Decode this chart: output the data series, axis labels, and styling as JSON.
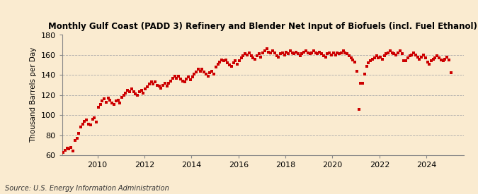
{
  "title": "Monthly Gulf Coast (PADD 3) Refinery and Blender Net Input of Biofuels (incl. Fuel Ethanol)",
  "ylabel": "Thousand Barrels per Day",
  "source": "Source: U.S. Energy Information Administration",
  "background_color": "#faebd0",
  "dot_color": "#cc0000",
  "ylim": [
    60,
    180
  ],
  "yticks": [
    60,
    80,
    100,
    120,
    140,
    160,
    180
  ],
  "xlim_start": [
    2008,
    7,
    1
  ],
  "xlim_end": [
    2025,
    8,
    1
  ],
  "start_year": 2008,
  "start_month": 7,
  "data": [
    63,
    65,
    67,
    66,
    68,
    64,
    75,
    77,
    82,
    88,
    91,
    94,
    95,
    91,
    90,
    96,
    97,
    93,
    108,
    111,
    114,
    116,
    113,
    117,
    115,
    112,
    111,
    114,
    115,
    112,
    118,
    120,
    122,
    125,
    123,
    126,
    123,
    121,
    120,
    123,
    125,
    122,
    126,
    128,
    131,
    133,
    131,
    133,
    130,
    129,
    127,
    130,
    132,
    129,
    132,
    134,
    137,
    139,
    137,
    139,
    136,
    134,
    133,
    136,
    138,
    135,
    138,
    141,
    143,
    146,
    144,
    146,
    143,
    141,
    139,
    142,
    144,
    141,
    148,
    151,
    153,
    155,
    154,
    155,
    152,
    150,
    149,
    152,
    154,
    151,
    154,
    157,
    159,
    161,
    160,
    162,
    159,
    157,
    156,
    159,
    161,
    158,
    162,
    164,
    166,
    163,
    162,
    164,
    162,
    159,
    158,
    161,
    162,
    160,
    163,
    161,
    164,
    162,
    161,
    163,
    161,
    159,
    161,
    163,
    164,
    162,
    161,
    162,
    164,
    162,
    161,
    163,
    161,
    159,
    158,
    161,
    162,
    160,
    162,
    160,
    162,
    161,
    162,
    164,
    162,
    161,
    159,
    157,
    155,
    153,
    144,
    106,
    132,
    132,
    141,
    149,
    152,
    154,
    156,
    157,
    159,
    157,
    158,
    156,
    159,
    161,
    162,
    164,
    162,
    161,
    160,
    162,
    164,
    161,
    154,
    154,
    157,
    159,
    160,
    162,
    160,
    158,
    156,
    158,
    160,
    157,
    153,
    151,
    154,
    156,
    157,
    159,
    157,
    155,
    154,
    156,
    158,
    155,
    142
  ]
}
